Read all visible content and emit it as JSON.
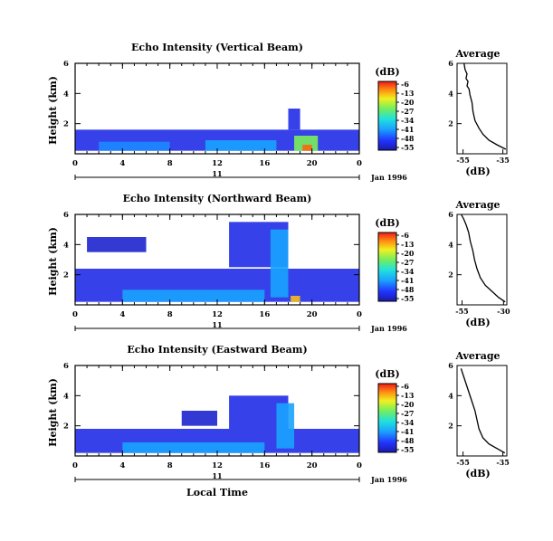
{
  "chart_data": [
    {
      "type": "heatmap",
      "title": "Echo Intensity (Vertical Beam)",
      "ylabel": "Height (km)",
      "xticks": [
        "0",
        "4",
        "8",
        "12",
        "16",
        "20",
        "0"
      ],
      "yticks": [
        "2",
        "4",
        "6"
      ],
      "xlim": [
        0,
        24
      ],
      "ylim": [
        0,
        6
      ],
      "date_number": "11",
      "date_label": "Jan 1996",
      "colorbar": {
        "unit": "(dB)",
        "ticks": [
          "-6",
          "-13",
          "-20",
          "-27",
          "-34",
          "-41",
          "-48",
          "-55"
        ]
      },
      "profile": {
        "title": "Average",
        "xlabel": "(dB)",
        "xticks": [
          "-55",
          "-35"
        ],
        "yticks": [
          "2",
          "4",
          "6"
        ],
        "xlim": [
          -58,
          -33
        ],
        "points": [
          [
            -33.5,
            0.3
          ],
          [
            -38,
            0.6
          ],
          [
            -42,
            0.9
          ],
          [
            -45,
            1.3
          ],
          [
            -47,
            1.7
          ],
          [
            -49,
            2.2
          ],
          [
            -50,
            2.8
          ],
          [
            -50.5,
            3.4
          ],
          [
            -51.5,
            3.9
          ],
          [
            -52,
            4.3
          ],
          [
            -53,
            4.5
          ],
          [
            -52.5,
            4.8
          ],
          [
            -53.5,
            5.0
          ],
          [
            -53,
            5.3
          ],
          [
            -54,
            5.6
          ],
          [
            -54.5,
            6.0
          ]
        ]
      },
      "regions": [
        {
          "t": [
            0,
            24
          ],
          "h": [
            0.2,
            1.6
          ],
          "level": -50
        },
        {
          "t": [
            2,
            8
          ],
          "h": [
            0.2,
            0.8
          ],
          "level": -42
        },
        {
          "t": [
            11,
            17
          ],
          "h": [
            0.2,
            0.9
          ],
          "level": -40
        },
        {
          "t": [
            18.5,
            20.5
          ],
          "h": [
            0.2,
            1.2
          ],
          "level": -25
        },
        {
          "t": [
            19.2,
            20.0
          ],
          "h": [
            0.2,
            0.6
          ],
          "level": -10
        },
        {
          "t": [
            18,
            19
          ],
          "h": [
            1.6,
            3.0
          ],
          "level": -50
        }
      ]
    },
    {
      "type": "heatmap",
      "title": "Echo Intensity (Northward Beam)",
      "ylabel": "Height (km)",
      "xticks": [
        "0",
        "4",
        "8",
        "12",
        "16",
        "20",
        "0"
      ],
      "yticks": [
        "2",
        "4",
        "6"
      ],
      "xlim": [
        0,
        24
      ],
      "ylim": [
        0,
        6
      ],
      "date_number": "11",
      "date_label": "Jan 1996",
      "colorbar": {
        "unit": "(dB)",
        "ticks": [
          "-6",
          "-13",
          "-20",
          "-27",
          "-34",
          "-41",
          "-48",
          "-55"
        ]
      },
      "profile": {
        "title": "Average",
        "xlabel": "(dB)",
        "xticks": [
          "-55",
          "-30"
        ],
        "yticks": [
          "2",
          "4",
          "6"
        ],
        "xlim": [
          -58,
          -28
        ],
        "points": [
          [
            -29,
            0.2
          ],
          [
            -33,
            0.5
          ],
          [
            -37,
            0.9
          ],
          [
            -41,
            1.3
          ],
          [
            -44,
            1.8
          ],
          [
            -46,
            2.4
          ],
          [
            -47.5,
            3.0
          ],
          [
            -48.5,
            3.6
          ],
          [
            -50,
            4.2
          ],
          [
            -51,
            4.8
          ],
          [
            -52.5,
            5.3
          ],
          [
            -54,
            5.7
          ],
          [
            -55.5,
            6.0
          ]
        ]
      },
      "regions": [
        {
          "t": [
            0,
            24
          ],
          "h": [
            0.2,
            2.4
          ],
          "level": -50
        },
        {
          "t": [
            1,
            6
          ],
          "h": [
            3.5,
            4.5
          ],
          "level": -52
        },
        {
          "t": [
            13,
            18
          ],
          "h": [
            2.5,
            5.5
          ],
          "level": -50
        },
        {
          "t": [
            16.5,
            18
          ],
          "h": [
            0.5,
            5.0
          ],
          "level": -40
        },
        {
          "t": [
            4,
            16
          ],
          "h": [
            0.2,
            1.0
          ],
          "level": -40
        },
        {
          "t": [
            18.2,
            19.0
          ],
          "h": [
            0.2,
            0.6
          ],
          "level": -15
        }
      ]
    },
    {
      "type": "heatmap",
      "title": "Echo Intensity (Eastward Beam)",
      "ylabel": "Height (km)",
      "xticks": [
        "0",
        "4",
        "8",
        "12",
        "16",
        "20",
        "0"
      ],
      "yticks": [
        "2",
        "4",
        "6"
      ],
      "xlim": [
        0,
        24
      ],
      "ylim": [
        0,
        6
      ],
      "date_number": "11",
      "date_label": "Jan 1996",
      "xlabel": "Local Time",
      "colorbar": {
        "unit": "(dB)",
        "ticks": [
          "-6",
          "-13",
          "-20",
          "-27",
          "-34",
          "-41",
          "-48",
          "-55"
        ]
      },
      "profile": {
        "title": "Average",
        "xlabel": "(dB)",
        "xticks": [
          "-55",
          "-35"
        ],
        "yticks": [
          "2",
          "4",
          "6"
        ],
        "xlim": [
          -58,
          -33
        ],
        "points": [
          [
            -34,
            0.2
          ],
          [
            -38,
            0.5
          ],
          [
            -42,
            0.8
          ],
          [
            -45,
            1.2
          ],
          [
            -47,
            1.8
          ],
          [
            -48,
            2.4
          ],
          [
            -49,
            3.0
          ],
          [
            -50.5,
            3.6
          ],
          [
            -52,
            4.2
          ],
          [
            -53.5,
            4.8
          ],
          [
            -55,
            5.4
          ],
          [
            -56,
            5.8
          ]
        ]
      },
      "regions": [
        {
          "t": [
            0,
            24
          ],
          "h": [
            0.2,
            1.8
          ],
          "level": -50
        },
        {
          "t": [
            13,
            18
          ],
          "h": [
            1.8,
            4.0
          ],
          "level": -50
        },
        {
          "t": [
            17,
            18.5
          ],
          "h": [
            0.5,
            3.5
          ],
          "level": -40
        },
        {
          "t": [
            4,
            16
          ],
          "h": [
            0.2,
            0.9
          ],
          "level": -40
        },
        {
          "t": [
            9,
            12
          ],
          "h": [
            2.0,
            3.0
          ],
          "level": -52
        }
      ]
    }
  ]
}
